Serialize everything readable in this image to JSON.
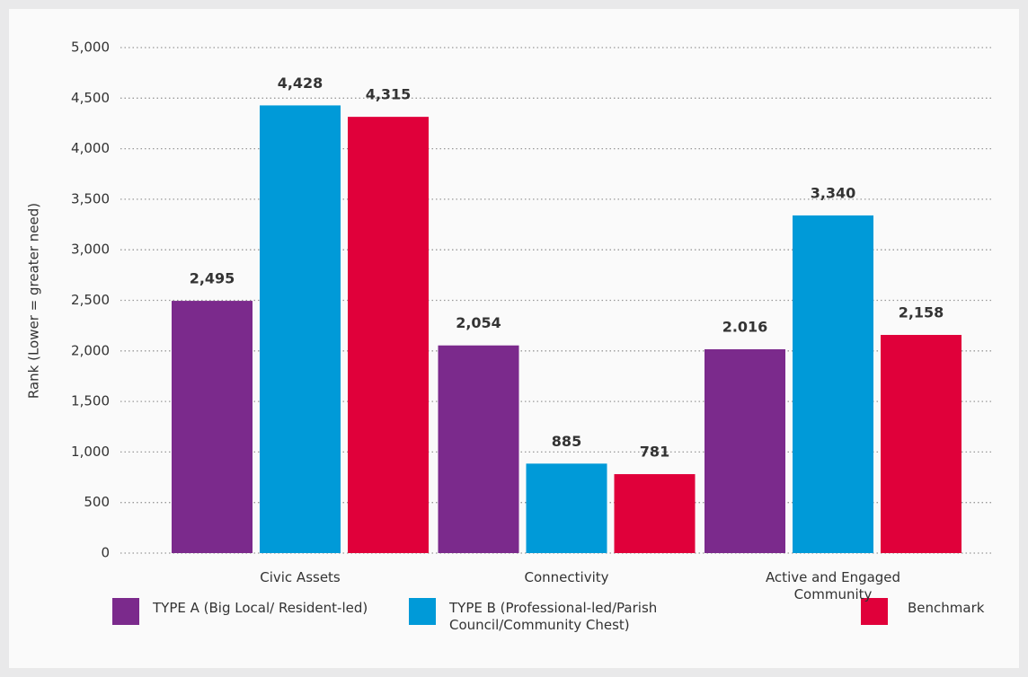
{
  "chart_data": {
    "type": "bar",
    "y_label": "Rank (Lower = greater need)",
    "categories": [
      "Civic Assets",
      "Connectivity",
      "Active and Engaged Community"
    ],
    "series": [
      {
        "name": "TYPE A (Big Local/ Resident-led)",
        "color": "#7b2a8c",
        "values": [
          2495,
          2054,
          2016
        ],
        "value_labels": [
          "2,495",
          "2,054",
          "2.016"
        ]
      },
      {
        "name": "TYPE B (Professional-led/Parish Council/Community Chest)",
        "color": "#009ad8",
        "values": [
          4428,
          885,
          3340
        ],
        "value_labels": [
          "4,428",
          "885",
          "3,340"
        ]
      },
      {
        "name": "Benchmark",
        "color": "#e0003a",
        "values": [
          4315,
          781,
          2158
        ],
        "value_labels": [
          "4,315",
          "781",
          "2,158"
        ]
      }
    ],
    "ylim": [
      0,
      5000
    ],
    "yticks": [
      0,
      500,
      {
        "value": 1000,
        "label": "1,000"
      },
      {
        "value": 1500,
        "label": "1,500"
      },
      {
        "value": 2000,
        "label": "2,000"
      },
      {
        "value": 2500,
        "label": "2,500"
      },
      {
        "value": 3000,
        "label": "3,000"
      },
      {
        "value": 3500,
        "label": "3,500"
      },
      {
        "value": 4000,
        "label": "4,000"
      },
      {
        "value": 4500,
        "label": "4,500"
      },
      {
        "value": 5000,
        "label": "5,000"
      }
    ],
    "grid": true
  }
}
